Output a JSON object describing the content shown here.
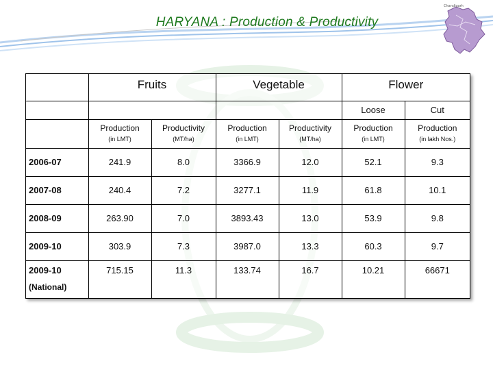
{
  "slide": {
    "title": "HARYANA : Production & Productivity",
    "logo_caption": "Chandigarh"
  },
  "table": {
    "groups": [
      "Fruits",
      "Vegetable",
      "Flower"
    ],
    "flower_subgroups": [
      "Loose",
      "Cut"
    ],
    "column_headers": [
      {
        "label": "Production",
        "unit": "(in LMT)"
      },
      {
        "label": "Productivity",
        "unit": "(MT/ha)"
      },
      {
        "label": "Production",
        "unit": "(in LMT)"
      },
      {
        "label": "Productivity",
        "unit": "(MT/ha)"
      },
      {
        "label": "Production",
        "unit": "(in LMT)"
      },
      {
        "label": "Production",
        "unit": "(in lakh Nos.)"
      }
    ],
    "rows": [
      {
        "year": "2006-07",
        "values": [
          "241.9",
          "8.0",
          "3366.9",
          "12.0",
          "52.1",
          "9.3"
        ]
      },
      {
        "year": "2007-08",
        "values": [
          "240.4",
          "7.2",
          "3277.1",
          "11.9",
          "61.8",
          "10.1"
        ]
      },
      {
        "year": "2008-09",
        "values": [
          "263.90",
          "7.0",
          "3893.43",
          "13.0",
          "53.9",
          "9.8"
        ]
      },
      {
        "year": "2009-10",
        "values": [
          "303.9",
          "7.3",
          "3987.0",
          "13.3",
          "60.3",
          "9.7"
        ]
      },
      {
        "year": "2009-10",
        "note": "(National)",
        "values": [
          "715.15",
          "11.3",
          "133.74",
          "16.7",
          "10.21",
          "66671"
        ]
      }
    ]
  },
  "colors": {
    "title": "#1f7a1f",
    "swoosh": "#9fc3ea",
    "map": "#9a6fb8"
  }
}
